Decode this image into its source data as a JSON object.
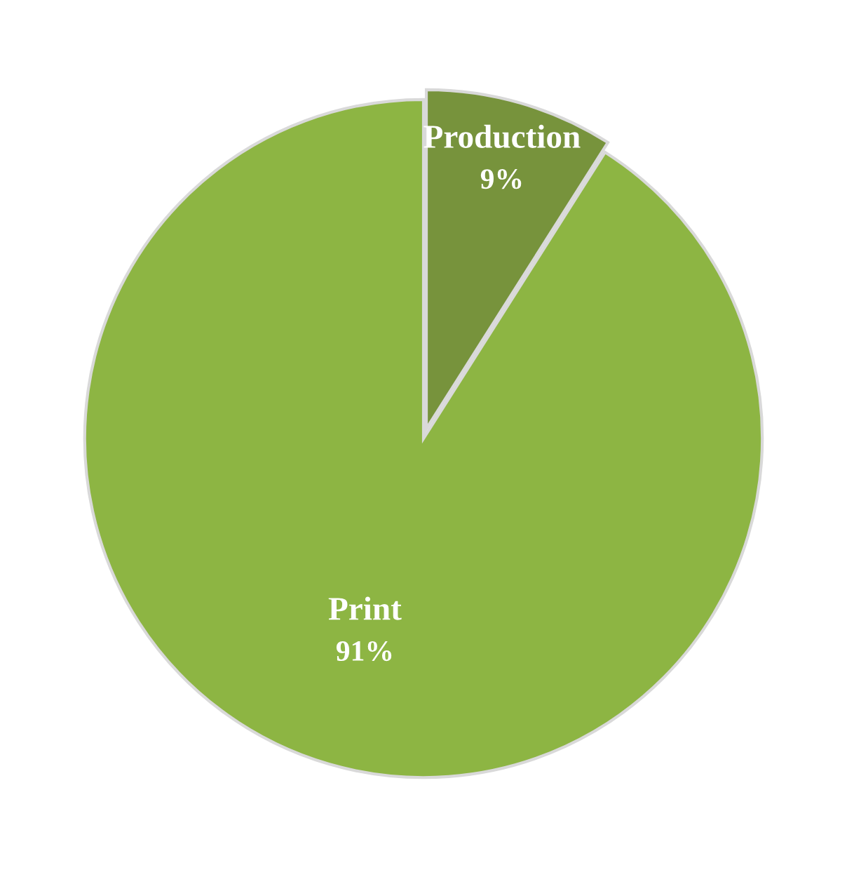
{
  "chart_data": {
    "type": "pie",
    "categories": [
      "Production",
      "Print"
    ],
    "values": [
      9,
      91
    ],
    "colors": [
      "#77933c",
      "#8db543"
    ],
    "value_labels": [
      "9%",
      "91%"
    ]
  }
}
